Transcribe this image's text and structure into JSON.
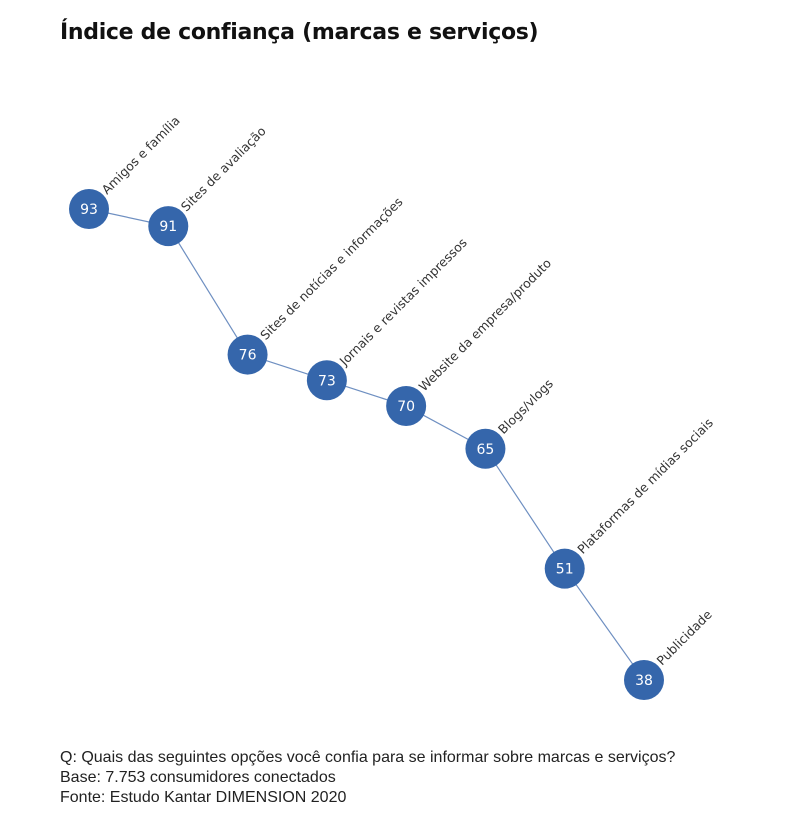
{
  "chart_data": {
    "type": "line",
    "title": "Índice de confiança (marcas e serviços)",
    "categories": [
      "Amigos e família",
      "Sites de avaliação",
      "Sites de notícias e informações",
      "Jornais e revistas impressos",
      "Website da empresa/produto",
      "Blogs/vlogs",
      "Plataformas de mídias sociais",
      "Publicidade"
    ],
    "series": [
      {
        "values": [
          93,
          91,
          76,
          73,
          70,
          65,
          51,
          38
        ]
      }
    ],
    "ylim": [
      38,
      93
    ],
    "y_inverted": true,
    "grid": false,
    "data_labels": true,
    "colors": {
      "marker": "#3566ab",
      "line": "#6e8fc1",
      "marker_text": "#ffffff",
      "label_text": "#333333"
    }
  },
  "footer": {
    "question": "Q: Quais das seguintes opções você confia para se informar sobre marcas e serviços?",
    "base": "Base: 7.753 consumidores conectados",
    "source": "Fonte: Estudo Kantar DIMENSION 2020"
  }
}
